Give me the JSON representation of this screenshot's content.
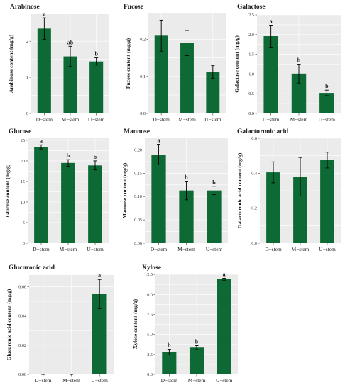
{
  "chart_data": [
    {
      "type": "bar",
      "title": "Arabinose",
      "ylabel": "Arabinose content (mg/g)",
      "categories": [
        "D−stem",
        "M−stem",
        "U−stem"
      ],
      "values": [
        2.35,
        1.58,
        1.44
      ],
      "errors": [
        0.3,
        0.28,
        0.1
      ],
      "letters": [
        "a",
        "ab",
        "b"
      ],
      "ylim": [
        0,
        2.75
      ],
      "yticks": [
        0,
        1,
        2
      ],
      "ytick_labels": [
        "0",
        "1",
        "2"
      ]
    },
    {
      "type": "bar",
      "title": "Fucose",
      "ylabel": "Fucose content (mg/g)",
      "categories": [
        "D−stem",
        "M−stem",
        "U−stem"
      ],
      "values": [
        0.21,
        0.19,
        0.112
      ],
      "errors": [
        0.042,
        0.034,
        0.017
      ],
      "letters": [
        "",
        "",
        ""
      ],
      "ylim": [
        0,
        0.27
      ],
      "yticks": [
        0,
        0.1,
        0.2
      ],
      "ytick_labels": [
        "0.0",
        "0.1",
        "0.2"
      ]
    },
    {
      "type": "bar",
      "title": "Galactose",
      "ylabel": "Galactose content (mg/g)",
      "categories": [
        "D−stem",
        "M−stem",
        "U−stem"
      ],
      "values": [
        1.96,
        1.01,
        0.52
      ],
      "errors": [
        0.28,
        0.24,
        0.07
      ],
      "letters": [
        "a",
        "b",
        "b"
      ],
      "ylim": [
        0,
        2.5
      ],
      "yticks": [
        0,
        0.5,
        1,
        1.5,
        2,
        2.5
      ],
      "ytick_labels": [
        "0.0",
        "0.5",
        "1.0",
        "1.5",
        "2.0",
        "2.5"
      ]
    },
    {
      "type": "bar",
      "title": "Glucose",
      "ylabel": "Glucose content (mg/g)",
      "categories": [
        "D−stem",
        "M−stem",
        "U−stem"
      ],
      "values": [
        23.4,
        19.5,
        18.9
      ],
      "errors": [
        0.5,
        0.8,
        1.1
      ],
      "letters": [
        "a",
        "b",
        "b"
      ],
      "ylim": [
        0,
        25.5
      ],
      "yticks": [
        0,
        5,
        10,
        15,
        20,
        25
      ],
      "ytick_labels": [
        "0",
        "5",
        "10",
        "15",
        "20",
        "25"
      ]
    },
    {
      "type": "bar",
      "title": "Mannose",
      "ylabel": "Mannose content (mg/g)",
      "categories": [
        "D−stem",
        "M−stem",
        "U−stem"
      ],
      "values": [
        0.19,
        0.113,
        0.113
      ],
      "errors": [
        0.022,
        0.02,
        0.009
      ],
      "letters": [
        "a",
        "b",
        "b"
      ],
      "ylim": [
        0,
        0.225
      ],
      "yticks": [
        0,
        0.05,
        0.1,
        0.15,
        0.2
      ],
      "ytick_labels": [
        "0.00",
        "0.05",
        "0.10",
        "0.15",
        "0.20"
      ]
    },
    {
      "type": "bar",
      "title": "Galacturonic acid",
      "ylabel": "Galacturonic acid content (mg/g)",
      "categories": [
        "D−stem",
        "M−stem",
        "U−stem"
      ],
      "values": [
        0.405,
        0.38,
        0.475
      ],
      "errors": [
        0.06,
        0.11,
        0.045
      ],
      "letters": [
        "",
        "",
        ""
      ],
      "ylim": [
        0,
        0.6
      ],
      "yticks": [
        0,
        0.2,
        0.4,
        0.6
      ],
      "ytick_labels": [
        "0.0",
        "0.2",
        "0.4",
        "0.6"
      ]
    },
    {
      "type": "bar",
      "title": "Glucuronic acid",
      "ylabel": "Glucuronic acid content (mg/g)",
      "categories": [
        "D−stem",
        "M−stem",
        "U−stem"
      ],
      "values": [
        0,
        0,
        0.055
      ],
      "errors": [
        0,
        0,
        0.01
      ],
      "letters": [
        "",
        "",
        "a"
      ],
      "ylim": [
        0,
        0.068
      ],
      "yticks": [
        0,
        0.02,
        0.04,
        0.06
      ],
      "ytick_labels": [
        "0.00",
        "0.02",
        "0.04",
        "0.06"
      ]
    },
    {
      "type": "bar",
      "title": "Xylose",
      "ylabel": "Xylose content (mg/g)",
      "categories": [
        "D−stem",
        "M−stem",
        "U−stem"
      ],
      "values": [
        2.8,
        3.35,
        11.9
      ],
      "errors": [
        0.35,
        0.25,
        0.12
      ],
      "letters": [
        "b",
        "b",
        "a"
      ],
      "ylim": [
        0,
        12.6
      ],
      "yticks": [
        0,
        2.5,
        5,
        7.5,
        10,
        12.5
      ],
      "ytick_labels": [
        "0.0",
        "2.5",
        "5.0",
        "7.5",
        "10.0",
        "12.5"
      ]
    }
  ]
}
